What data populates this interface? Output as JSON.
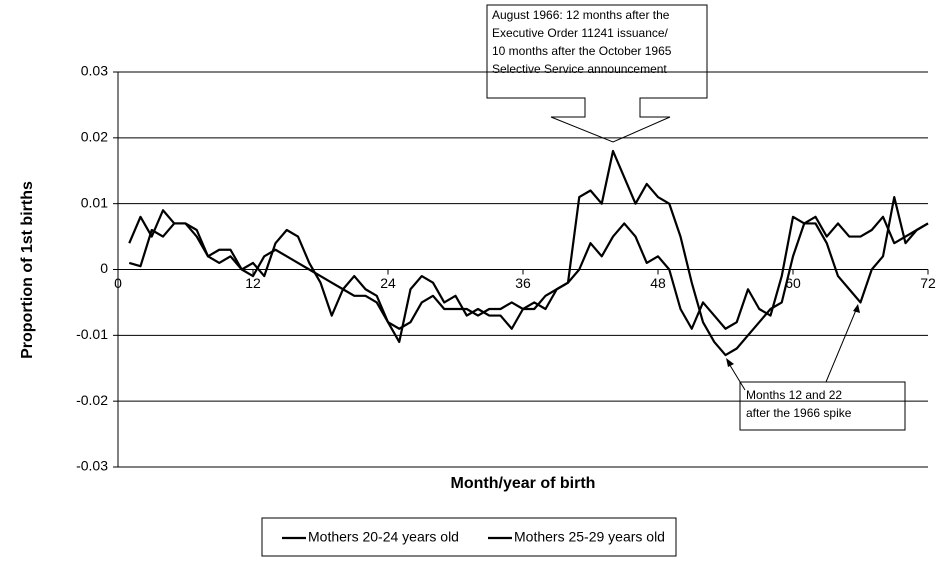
{
  "chart_data": {
    "type": "line",
    "y_label": "Proportion of 1st births",
    "x_label": "Month/year of birth",
    "xlim": [
      0,
      72
    ],
    "xticks": [
      0,
      12,
      24,
      36,
      48,
      60,
      72
    ],
    "ylim": [
      -0.03,
      0.03
    ],
    "yticks": [
      -0.03,
      -0.02,
      -0.01,
      0,
      0.01,
      0.02,
      0.03
    ],
    "grid": true,
    "legend": "bottom",
    "x": [
      1,
      2,
      3,
      4,
      5,
      6,
      7,
      8,
      9,
      10,
      11,
      12,
      13,
      14,
      15,
      16,
      17,
      18,
      19,
      20,
      21,
      22,
      23,
      24,
      25,
      26,
      27,
      28,
      29,
      30,
      31,
      32,
      33,
      34,
      35,
      36,
      37,
      38,
      39,
      40,
      41,
      42,
      43,
      44,
      45,
      46,
      47,
      48,
      49,
      50,
      51,
      52,
      53,
      54,
      55,
      56,
      57,
      58,
      59,
      60,
      61,
      62,
      63,
      64,
      65,
      66,
      67,
      68,
      69,
      70,
      71,
      72
    ],
    "series": [
      {
        "name": "Mothers 20-24 years old",
        "color": "#000000",
        "values": [
          0.001,
          0.0005,
          0.006,
          0.005,
          0.007,
          0.007,
          0.006,
          0.002,
          0.001,
          0.002,
          0,
          -0.001,
          0.002,
          0.003,
          0.002,
          0.001,
          0,
          -0.001,
          -0.002,
          -0.003,
          -0.004,
          -0.004,
          -0.005,
          -0.008,
          -0.009,
          -0.008,
          -0.005,
          -0.004,
          -0.006,
          -0.006,
          -0.006,
          -0.007,
          -0.006,
          -0.006,
          -0.005,
          -0.006,
          -0.006,
          -0.004,
          -0.003,
          -0.002,
          0.011,
          0.012,
          0.01,
          0.018,
          0.014,
          0.01,
          0.013,
          0.011,
          0.01,
          0.005,
          -0.002,
          -0.008,
          -0.011,
          -0.013,
          -0.012,
          -0.01,
          -0.008,
          -0.006,
          -0.005,
          0.002,
          0.007,
          0.007,
          0.004,
          -0.001,
          -0.003,
          -0.005,
          0,
          0.002,
          0.011,
          0.004,
          0.006,
          0.007
        ]
      },
      {
        "name": "Mothers 25-29 years old",
        "color": "#000000",
        "values": [
          0.004,
          0.008,
          0.005,
          0.009,
          0.007,
          0.007,
          0.005,
          0.002,
          0.003,
          0.003,
          0,
          0.001,
          -0.001,
          0.004,
          0.006,
          0.005,
          0.001,
          -0.002,
          -0.007,
          -0.003,
          -0.001,
          -0.003,
          -0.004,
          -0.008,
          -0.011,
          -0.003,
          -0.001,
          -0.002,
          -0.005,
          -0.004,
          -0.007,
          -0.006,
          -0.007,
          -0.007,
          -0.009,
          -0.006,
          -0.005,
          -0.006,
          -0.003,
          -0.002,
          0,
          0.004,
          0.002,
          0.005,
          0.007,
          0.005,
          0.001,
          0.002,
          0,
          -0.006,
          -0.009,
          -0.005,
          -0.007,
          -0.009,
          -0.008,
          -0.003,
          -0.006,
          -0.007,
          -0.001,
          0.008,
          0.007,
          0.008,
          0.005,
          0.007,
          0.005,
          0.005,
          0.006,
          0.008,
          0.004,
          0.005,
          0.006,
          0.007
        ]
      }
    ],
    "annotations": [
      {
        "lines": [
          "August 1966: 12 months after the",
          "Executive Order 11241 issuance/",
          "10 months after the October 1965",
          "Selective Service announcement"
        ]
      },
      {
        "lines": [
          "Months 12 and 22",
          "after the 1966 spike"
        ]
      }
    ]
  }
}
